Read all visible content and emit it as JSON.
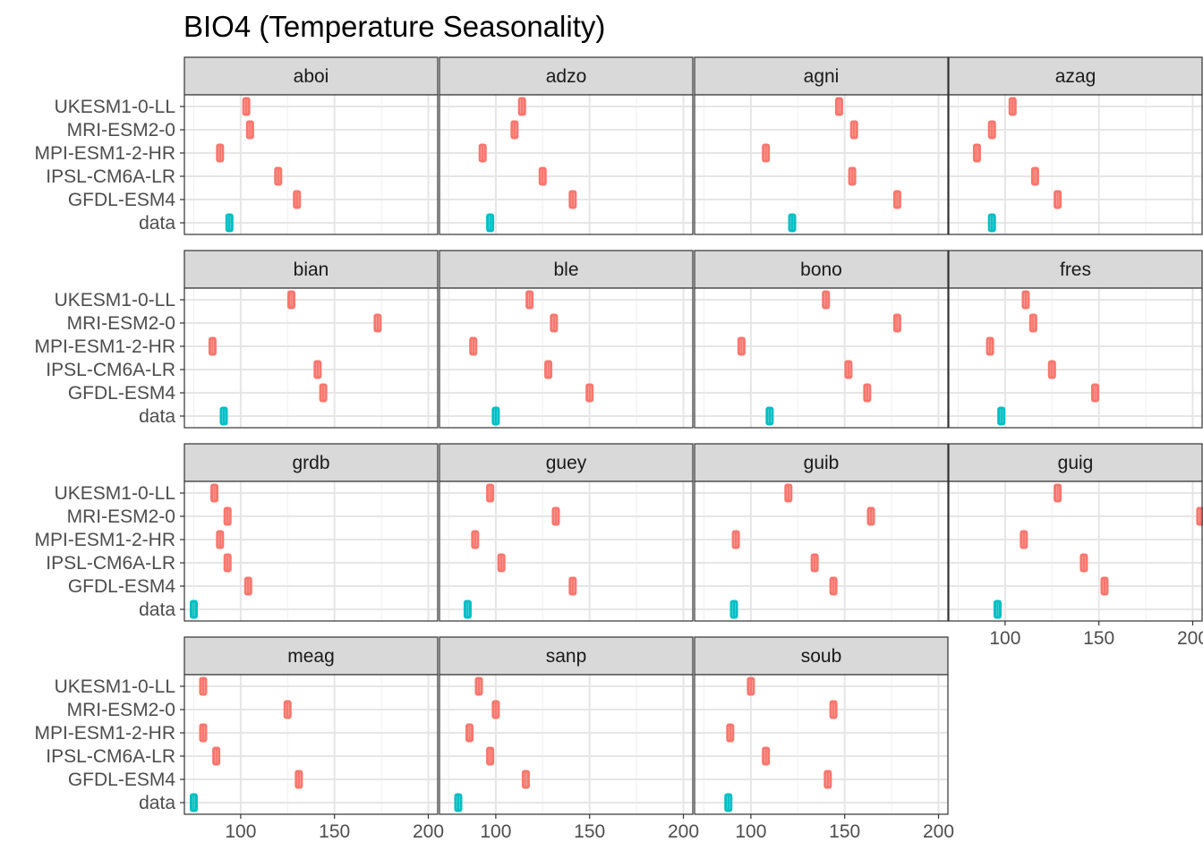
{
  "chart_data": {
    "type": "boxplot",
    "title": "BIO4 (Temperature Seasonality)",
    "xlabel": "",
    "ylabel": "",
    "xlim": [
      70,
      205
    ],
    "x_ticks": [
      100,
      150,
      200
    ],
    "y_categories": [
      "UKESM1-0-LL",
      "MRI-ESM2-0",
      "MPI-ESM1-2-HR",
      "IPSL-CM6A-LR",
      "GFDL-ESM4",
      "data"
    ],
    "grid": true,
    "legend": "none",
    "colors": {
      "model": "#F8766D",
      "data": "#00BFC4",
      "median_highlight": "#FFD700"
    },
    "facets": [
      {
        "name": "aboi",
        "values": {
          "UKESM1-0-LL": 103,
          "MRI-ESM2-0": 105,
          "MPI-ESM1-2-HR": 89,
          "IPSL-CM6A-LR": 120,
          "GFDL-ESM4": 130,
          "data": 94
        }
      },
      {
        "name": "adzo",
        "values": {
          "UKESM1-0-LL": 114,
          "MRI-ESM2-0": 110,
          "MPI-ESM1-2-HR": 93,
          "IPSL-CM6A-LR": 125,
          "GFDL-ESM4": 141,
          "data": 97
        }
      },
      {
        "name": "agni",
        "values": {
          "UKESM1-0-LL": 147,
          "MRI-ESM2-0": 155,
          "MPI-ESM1-2-HR": 108,
          "IPSL-CM6A-LR": 154,
          "GFDL-ESM4": 178,
          "data": 122
        }
      },
      {
        "name": "azag",
        "values": {
          "UKESM1-0-LL": 104,
          "MRI-ESM2-0": 93,
          "MPI-ESM1-2-HR": 85,
          "IPSL-CM6A-LR": 116,
          "GFDL-ESM4": 128,
          "data": 93
        }
      },
      {
        "name": "bian",
        "values": {
          "UKESM1-0-LL": 127,
          "MRI-ESM2-0": 173,
          "MPI-ESM1-2-HR": 85,
          "IPSL-CM6A-LR": 141,
          "GFDL-ESM4": 144,
          "data": 91
        }
      },
      {
        "name": "ble",
        "values": {
          "UKESM1-0-LL": 118,
          "MRI-ESM2-0": 131,
          "MPI-ESM1-2-HR": 88,
          "IPSL-CM6A-LR": 128,
          "GFDL-ESM4": 150,
          "data": 100
        }
      },
      {
        "name": "bono",
        "values": {
          "UKESM1-0-LL": 140,
          "MRI-ESM2-0": 178,
          "MPI-ESM1-2-HR": 95,
          "IPSL-CM6A-LR": 152,
          "GFDL-ESM4": 162,
          "data": 110
        }
      },
      {
        "name": "fres",
        "values": {
          "UKESM1-0-LL": 111,
          "MRI-ESM2-0": 115,
          "MPI-ESM1-2-HR": 92,
          "IPSL-CM6A-LR": 125,
          "GFDL-ESM4": 148,
          "data": 98
        }
      },
      {
        "name": "grdb",
        "values": {
          "UKESM1-0-LL": 86,
          "MRI-ESM2-0": 93,
          "MPI-ESM1-2-HR": 89,
          "IPSL-CM6A-LR": 93,
          "GFDL-ESM4": 104,
          "data": 75
        }
      },
      {
        "name": "guey",
        "values": {
          "UKESM1-0-LL": 97,
          "MRI-ESM2-0": 132,
          "MPI-ESM1-2-HR": 89,
          "IPSL-CM6A-LR": 103,
          "GFDL-ESM4": 141,
          "data": 85
        }
      },
      {
        "name": "guib",
        "values": {
          "UKESM1-0-LL": 120,
          "MRI-ESM2-0": 164,
          "MPI-ESM1-2-HR": 92,
          "IPSL-CM6A-LR": 134,
          "GFDL-ESM4": 144,
          "data": 91
        }
      },
      {
        "name": "guig",
        "values": {
          "UKESM1-0-LL": 128,
          "MRI-ESM2-0": 204,
          "MPI-ESM1-2-HR": 110,
          "IPSL-CM6A-LR": 142,
          "GFDL-ESM4": 153,
          "data": 96
        }
      },
      {
        "name": "meag",
        "values": {
          "UKESM1-0-LL": 80,
          "MRI-ESM2-0": 125,
          "MPI-ESM1-2-HR": 80,
          "IPSL-CM6A-LR": 87,
          "GFDL-ESM4": 131,
          "data": 75
        }
      },
      {
        "name": "sanp",
        "values": {
          "UKESM1-0-LL": 91,
          "MRI-ESM2-0": 100,
          "MPI-ESM1-2-HR": 86,
          "IPSL-CM6A-LR": 97,
          "GFDL-ESM4": 116,
          "data": 80
        }
      },
      {
        "name": "soub",
        "values": {
          "UKESM1-0-LL": 100,
          "MRI-ESM2-0": 144,
          "MPI-ESM1-2-HR": 89,
          "IPSL-CM6A-LR": 108,
          "GFDL-ESM4": 141,
          "data": 88
        }
      }
    ]
  }
}
